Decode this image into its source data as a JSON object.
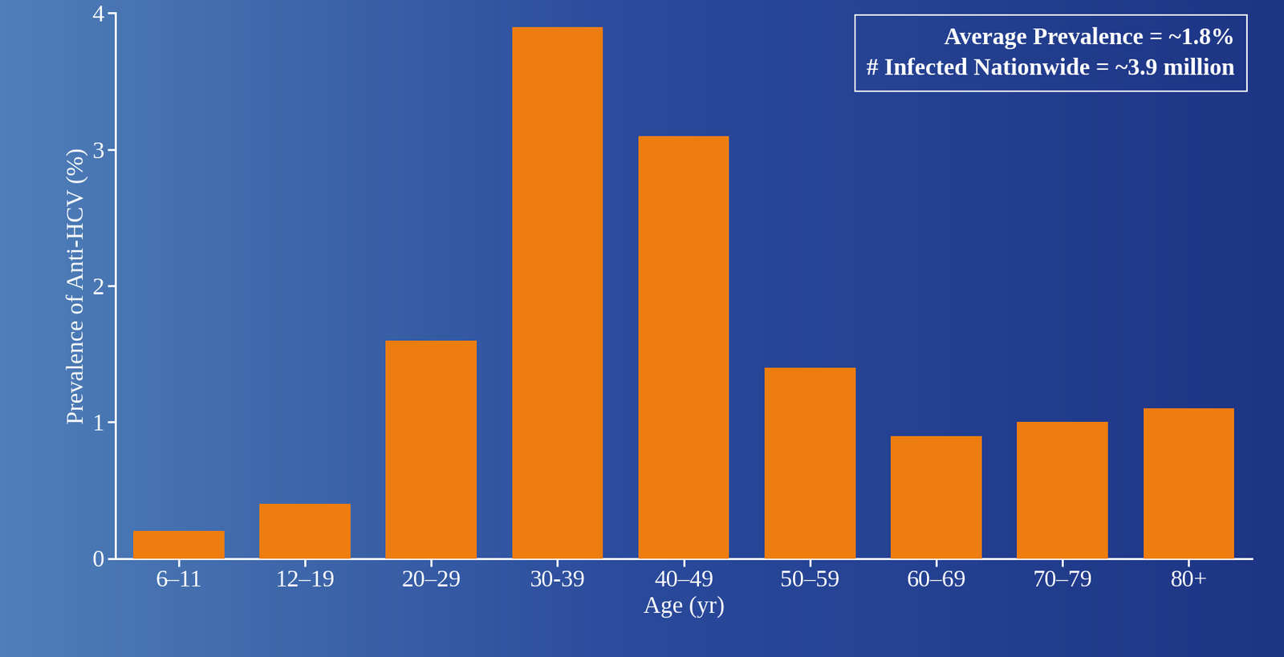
{
  "chart_data": {
    "type": "bar",
    "x_label": "Age (yr)",
    "y_label": "Prevalence of Anti-HCV (%)",
    "categories": [
      "6–11",
      "12–19",
      "20–29",
      "30-39",
      "40–49",
      "50–59",
      "60–69",
      "70–79",
      "80+"
    ],
    "values": [
      0.2,
      0.4,
      1.6,
      3.9,
      3.1,
      1.4,
      0.9,
      1.0,
      1.1
    ],
    "color": "#ee7d0f",
    "ylim": [
      0,
      4
    ],
    "yticks": [
      0,
      1,
      2,
      3,
      4
    ],
    "grid": false,
    "annotations": [
      "Average Prevalence = ~1.8%",
      "# Infected Nationwide = ~3.9 million"
    ]
  }
}
